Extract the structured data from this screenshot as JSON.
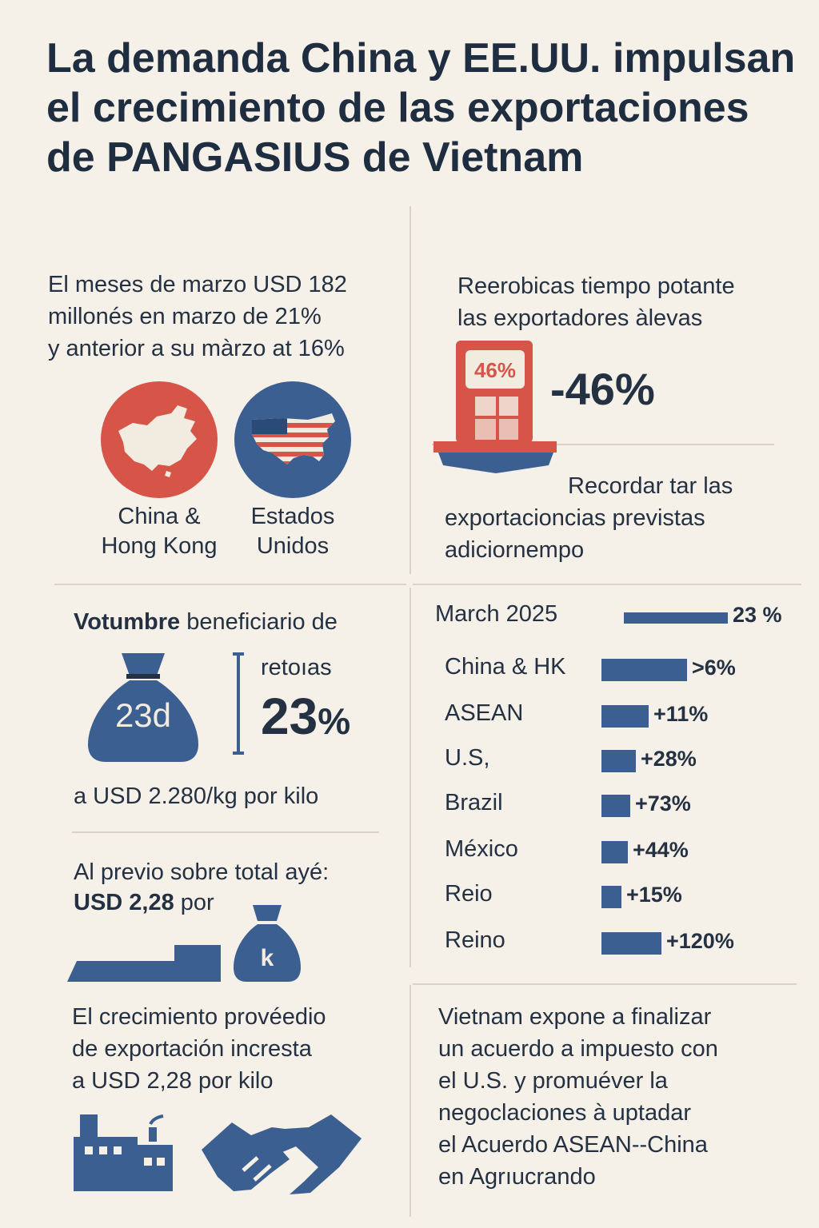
{
  "title": "La demanda China y EE.UU. impulsan el crecimiento de las exportaciones de PANGASIUS de Vietnam",
  "section1": {
    "text_lines": [
      "El meses de marzo USD 182",
      "millonés en marzo de 21%",
      "y anterior a su màrzo at 16%"
    ],
    "china_label_lines": [
      "China &",
      "Hong Kong"
    ],
    "us_label_lines": [
      "Estados",
      "Unidos"
    ]
  },
  "section2": {
    "text_lines": [
      "Reerobicas tiempo potante",
      "las exportadores àlevas"
    ],
    "badge": "46%",
    "big_value": "-46%",
    "bottom_lines": [
      "Recordar tar las",
      "exportacioncias previstas",
      "adiciornempo"
    ]
  },
  "section3": {
    "heading_bold": "Votumbre",
    "heading_rest": " beneficiario de",
    "bag_label": "23d",
    "side_label": "retoıas",
    "big_number": "23",
    "big_unit": "%",
    "price_line": "a USD 2.280/kg por kilo"
  },
  "section4": {
    "line1": "Al previo sobre total ayé:",
    "line2_bold": "USD 2,28",
    "line2_rest": " por",
    "bag_letter": "k"
  },
  "section5": {
    "text_lines": [
      "El crecimiento provéedio",
      "de exportación incresta",
      "a USD 2,28 por kilo"
    ]
  },
  "section6": {
    "text_lines": [
      "Vietnam expone a finalizar",
      "un acuerdo a impuesto con",
      "el U.S. y promuéver la",
      "negoclaciones à uptadar",
      "el Acuerdo ASEAN--China",
      "en Agrıucrando"
    ]
  },
  "chart_data": {
    "type": "bar",
    "orientation": "horizontal",
    "categories": [
      "March 2025",
      "China & HK",
      "ASEAN",
      "U.S,",
      "Brazil",
      "México",
      "Reio",
      "Reino"
    ],
    "value_labels": [
      "23 %",
      ">6%",
      "+11%",
      "+28%",
      "+73%",
      "+44%",
      "+15%",
      "+120%"
    ],
    "bar_lengths_relative": [
      1.0,
      0.82,
      0.45,
      0.33,
      0.28,
      0.25,
      0.19,
      0.58
    ],
    "color": "#3b5f90"
  },
  "colors": {
    "red": "#d65548",
    "blue": "#3b5f90",
    "background": "#f5f0e8",
    "text": "#1f2d40"
  }
}
